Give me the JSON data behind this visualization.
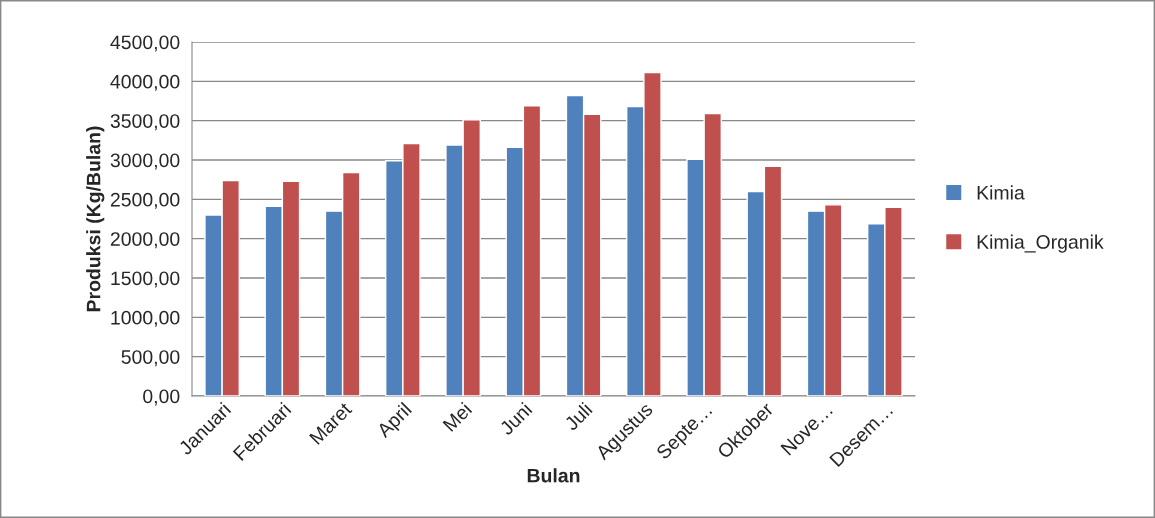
{
  "chart_data": {
    "type": "bar",
    "xlabel": "Bulan",
    "ylabel": "Produksi (Kg/Bulan)",
    "categories": [
      "Januari",
      "Februari",
      "Maret",
      "April",
      "Mei",
      "Juni",
      "Juli",
      "Agustus",
      "Septe…",
      "Oktober",
      "Nove…",
      "Desem…"
    ],
    "series": [
      {
        "name": "Kimia",
        "color": "#4f81bd",
        "values": [
          2300,
          2410,
          2350,
          2990,
          3190,
          3160,
          3820,
          3680,
          3010,
          2600,
          2350,
          2190
        ]
      },
      {
        "name": "Kimia_Organik",
        "color": "#c0504d",
        "values": [
          2740,
          2730,
          2840,
          3210,
          3510,
          3690,
          3580,
          4110,
          3590,
          2920,
          2430,
          2400
        ]
      }
    ],
    "ylim": [
      0,
      4500
    ],
    "yticks": [
      {
        "value": 0,
        "label": "0,00"
      },
      {
        "value": 500,
        "label": "500,00"
      },
      {
        "value": 1000,
        "label": "1000,00"
      },
      {
        "value": 1500,
        "label": "1500,00"
      },
      {
        "value": 2000,
        "label": "2000,00"
      },
      {
        "value": 2500,
        "label": "2500,00"
      },
      {
        "value": 3000,
        "label": "3000,00"
      },
      {
        "value": 3500,
        "label": "3500,00"
      },
      {
        "value": 4000,
        "label": "4000,00"
      },
      {
        "value": 4500,
        "label": "4500,00"
      }
    ],
    "grid": "y",
    "legend": "right"
  }
}
